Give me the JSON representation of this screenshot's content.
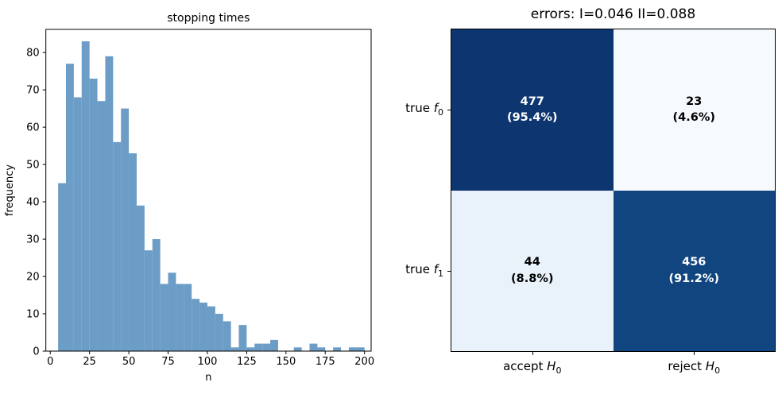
{
  "chart_data": [
    {
      "type": "bar",
      "title": "stopping times",
      "xlabel": "n",
      "ylabel": "frequency",
      "bar_color": "#6b9dc6",
      "grid": false,
      "legend": null,
      "bin_start": 5,
      "bin_width": 5,
      "bin_heights": [
        45,
        77,
        68,
        83,
        73,
        67,
        79,
        56,
        65,
        53,
        39,
        27,
        30,
        18,
        21,
        18,
        18,
        14,
        13,
        12,
        10,
        8,
        1,
        7,
        1,
        2,
        2,
        3,
        0,
        0,
        1,
        0,
        2,
        1,
        0,
        1,
        0,
        1,
        1
      ],
      "x_ticks": [
        0,
        25,
        50,
        75,
        100,
        125,
        150,
        175,
        200
      ],
      "y_ticks": [
        0,
        10,
        20,
        30,
        40,
        50,
        60,
        70,
        80
      ],
      "xlim": [
        -2.8,
        204.2
      ],
      "ylim": [
        0,
        86.2
      ]
    },
    {
      "type": "heatmap",
      "title": "errors: I=0.046 II=0.088",
      "row_labels": [
        {
          "text": "true",
          "var": "f",
          "sub": "0"
        },
        {
          "text": "true",
          "var": "f",
          "sub": "1"
        }
      ],
      "col_labels": [
        {
          "text": "accept",
          "var": "H",
          "sub": "0"
        },
        {
          "text": "reject",
          "var": "H",
          "sub": "0"
        }
      ],
      "counts": [
        [
          477,
          23
        ],
        [
          44,
          456
        ]
      ],
      "percents": [
        [
          "(95.4%)",
          "(4.6%)"
        ],
        [
          "(8.8%)",
          "(91.2%)"
        ]
      ],
      "cell_colors": [
        [
          "#0d3570",
          "#f6f9fe"
        ],
        [
          "#e9f1fb",
          "#10457f"
        ]
      ],
      "text_colors": [
        [
          "#ffffff",
          "#000000"
        ],
        [
          "#000000",
          "#ffffff"
        ]
      ]
    }
  ]
}
